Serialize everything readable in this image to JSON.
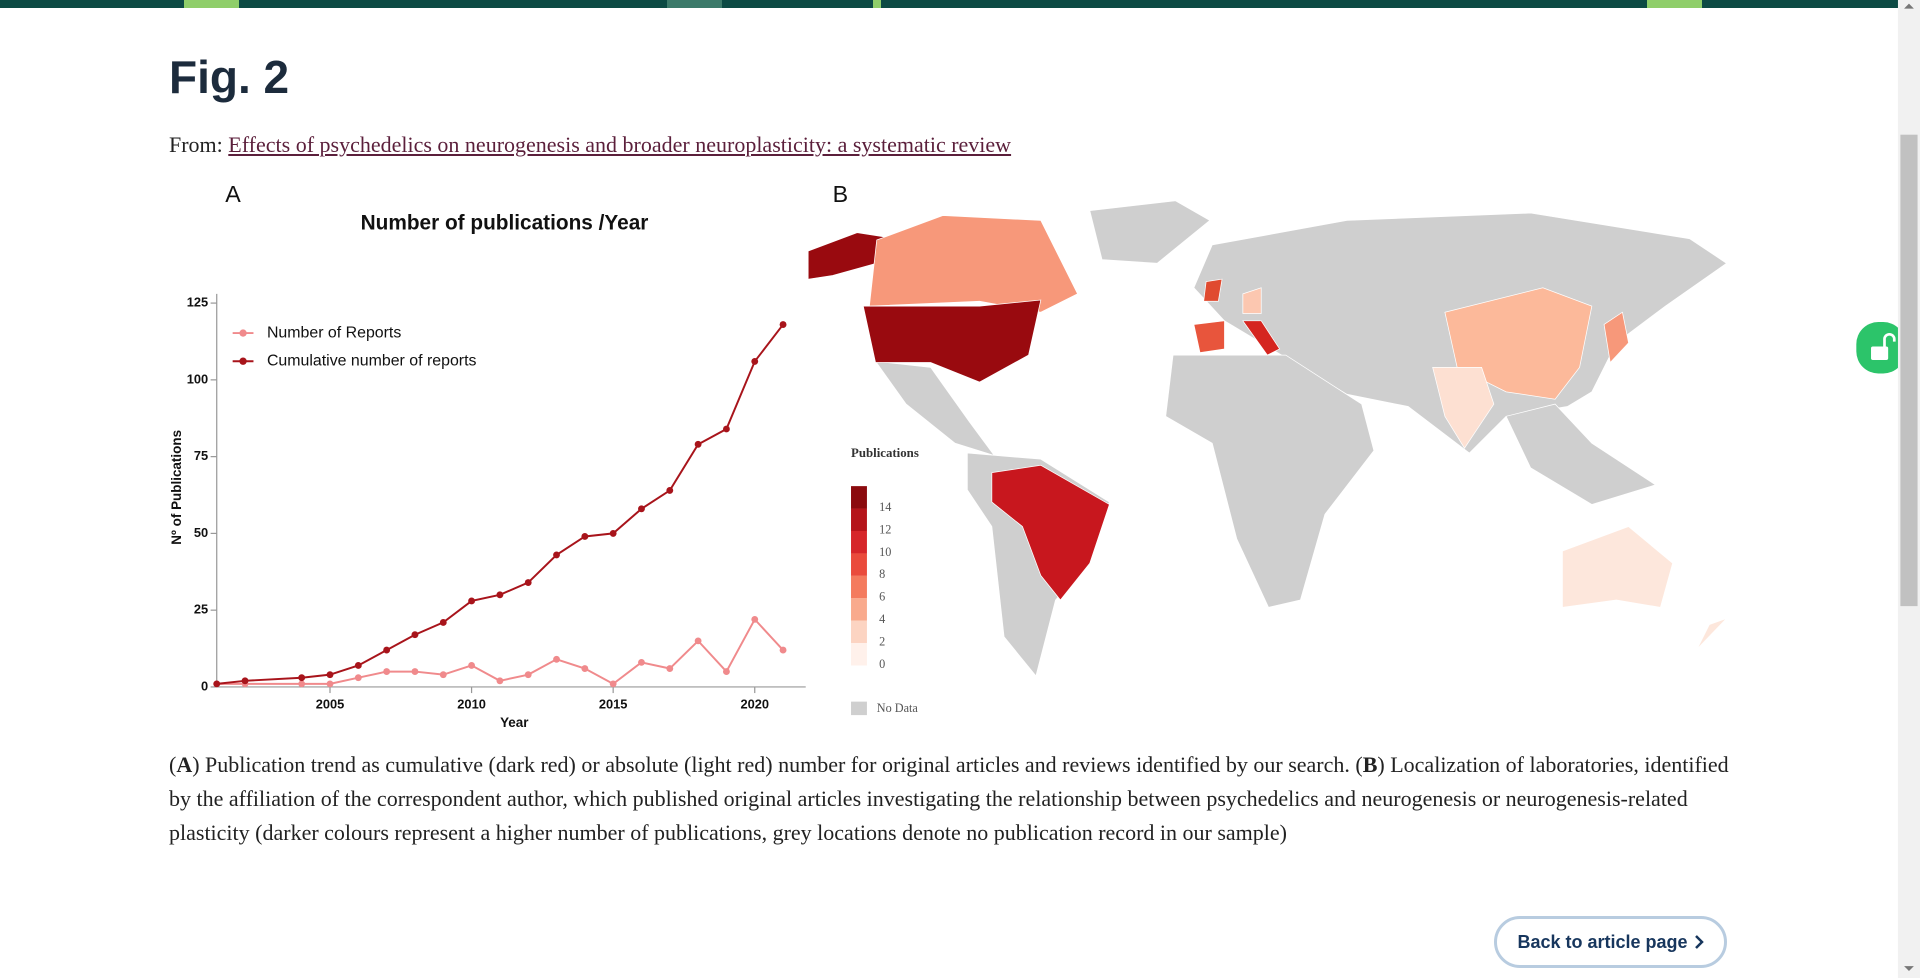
{
  "header": {
    "title": "Fig. 2"
  },
  "source": {
    "prefix": "From:",
    "link": "Effects of psychedelics on neurogenesis and broader neuroplasticity: a systematic review"
  },
  "chart_data": {
    "type": "line",
    "panel_label": "A",
    "title": "Number of publications /Year",
    "xlabel": "Year",
    "ylabel": "Nº of Publications",
    "x": [
      2001,
      2002,
      2004,
      2005,
      2006,
      2007,
      2008,
      2009,
      2010,
      2011,
      2012,
      2013,
      2014,
      2015,
      2016,
      2017,
      2018,
      2019,
      2020,
      2021
    ],
    "series": [
      {
        "name": "Number of Reports",
        "color": "#f08a8c",
        "values": [
          1,
          1,
          1,
          1,
          3,
          5,
          5,
          4,
          7,
          2,
          4,
          9,
          6,
          1,
          8,
          6,
          15,
          5,
          22,
          12
        ]
      },
      {
        "name": "Cumulative number of reports",
        "color": "#a8141b",
        "values": [
          1,
          2,
          3,
          4,
          7,
          12,
          17,
          21,
          28,
          30,
          34,
          43,
          49,
          50,
          58,
          64,
          79,
          84,
          106,
          118
        ]
      }
    ],
    "xlim": [
      2001,
      2021.8
    ],
    "ylim": [
      0,
      128
    ],
    "xticks": [
      2005,
      2010,
      2015,
      2020
    ],
    "yticks": [
      0,
      25,
      50,
      75,
      100,
      125
    ],
    "legend": "upper left"
  },
  "map": {
    "panel_label": "B",
    "legend_title": "Publications",
    "legend_ticks": [
      14,
      12,
      10,
      8,
      6,
      4,
      2,
      0
    ],
    "legend_colors": [
      "#8b0a0e",
      "#b5141a",
      "#d6262a",
      "#ea4b3c",
      "#f47b5e",
      "#f9aa8d",
      "#fcd4c2",
      "#fff1eb"
    ],
    "no_data": "No Data"
  },
  "caption": [
    "(",
    "A",
    ") Publication trend as cumulative (dark red) or absolute (light red) number for original articles and reviews identified by our search. (",
    "B",
    ") Localization of laboratories, identified by the affiliation of the correspondent author, which published original articles investigating the relationship between psychedelics and neurogenesis or neurogenesis-related plasticity (darker colours represent a higher number of publications, grey locations denote no publication record in our sample)"
  ],
  "button": {
    "label": "Back to article page"
  }
}
